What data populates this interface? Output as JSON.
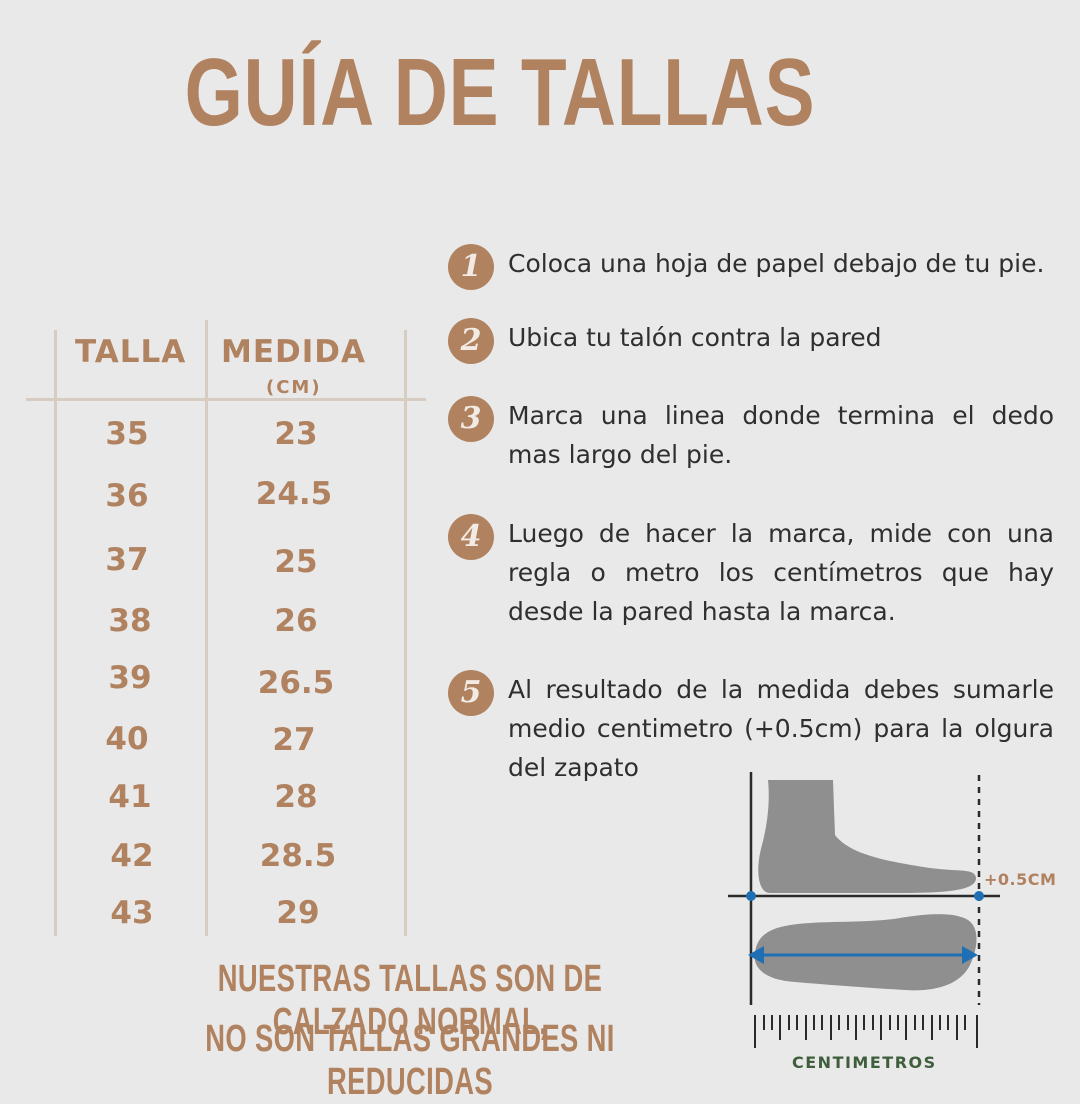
{
  "title": "GUÍA DE TALLAS",
  "table": {
    "headers": {
      "talla": "TALLA",
      "medida": "MEDIDA",
      "unit": "(CM)"
    },
    "rows": [
      {
        "talla": "35",
        "medida": "23"
      },
      {
        "talla": "36",
        "medida": "24.5"
      },
      {
        "talla": "37",
        "medida": "25"
      },
      {
        "talla": "38",
        "medida": "26"
      },
      {
        "talla": "39",
        "medida": "26.5"
      },
      {
        "talla": "40",
        "medida": "27"
      },
      {
        "talla": "41",
        "medida": "28"
      },
      {
        "talla": "42",
        "medida": "28.5"
      },
      {
        "talla": "43",
        "medida": "29"
      }
    ]
  },
  "steps": [
    {
      "number": "1",
      "text": "Coloca una hoja de papel debajo de tu pie."
    },
    {
      "number": "2",
      "text": "Ubica tu talón contra la pared"
    },
    {
      "number": "3",
      "text": "Marca una linea donde termina el dedo mas largo del pie."
    },
    {
      "number": "4",
      "text": "Luego de hacer la marca, mide con una regla o metro los centímetros que hay desde la pared hasta la marca."
    },
    {
      "number": "5",
      "text": "Al resultado de la medida debes sumarle medio centimetro (+0.5cm) para la olgura del zapato"
    }
  ],
  "diagram": {
    "offset_label": "+0.5CM",
    "ruler_label": "CENTIMETROS"
  },
  "footer": {
    "line1": "NUESTRAS TALLAS SON DE CALZADO NORMAL,",
    "line2": "NO SON TALLAS GRANDES NI REDUCIDAS"
  },
  "colors": {
    "accent": "#b0825f",
    "background": "#e9e9e9",
    "text": "#2e2e2e",
    "ruler_label": "#3f5e3b",
    "arrow": "#1f6fb5",
    "foot": "#8f8f8f"
  }
}
